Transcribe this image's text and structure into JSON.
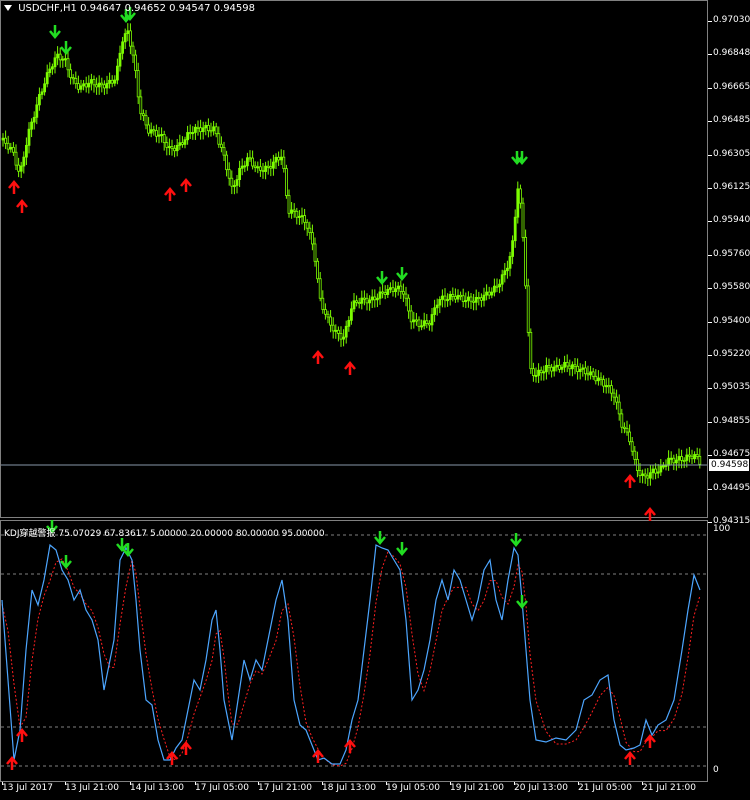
{
  "chart": {
    "symbol_label": "USDCHF,H1",
    "ohlc": "0.94647 0.94652 0.94547 0.94598",
    "current_price": "0.94598"
  },
  "indicator": {
    "name": "KDJ穿越警报",
    "values": "75.07029 67.83617 5.00000 20.00000 80.00000 95.00000",
    "levels": [
      95,
      80,
      20,
      5
    ],
    "scale_top": "100",
    "scale_bottom": "0"
  },
  "colors": {
    "background": "#000000",
    "candle": "#7CFC00",
    "k_line": "#4DA6FF",
    "d_line": "#FF2020",
    "arrow_down": "#22DD22",
    "arrow_up": "#FF1010"
  },
  "price_axis": [
    "0.97030",
    "0.96848",
    "0.96665",
    "0.96485",
    "0.96305",
    "0.96125",
    "0.95940",
    "0.95760",
    "0.95580",
    "0.95400",
    "0.95220",
    "0.95035",
    "0.94855",
    "0.94675",
    "0.94495",
    "0.94315"
  ],
  "time_axis": [
    "13 Jul 2017",
    "13 Jul 21:00",
    "14 Jul 13:00",
    "17 Jul 05:00",
    "17 Jul 21:00",
    "18 Jul 13:00",
    "19 Jul 05:00",
    "19 Jul 21:00",
    "20 Jul 13:00",
    "21 Jul 05:00",
    "21 Jul 21:00"
  ],
  "chart_data": {
    "type": "line",
    "title": "USDCHF,H1",
    "ylim": [
      0.94315,
      0.9703
    ],
    "x": [
      "13 Jul 2017",
      "13 Jul 21:00",
      "14 Jul 13:00",
      "17 Jul 05:00",
      "17 Jul 21:00",
      "18 Jul 13:00",
      "19 Jul 05:00",
      "19 Jul 21:00",
      "20 Jul 13:00",
      "21 Jul 05:00",
      "21 Jul 21:00"
    ],
    "series": [
      {
        "name": "USDCHF,H1",
        "values": [
          0.963,
          0.967,
          0.9638,
          0.965,
          0.9608,
          0.9545,
          0.9554,
          0.9555,
          0.9515,
          0.9478,
          0.946
        ]
      }
    ]
  }
}
